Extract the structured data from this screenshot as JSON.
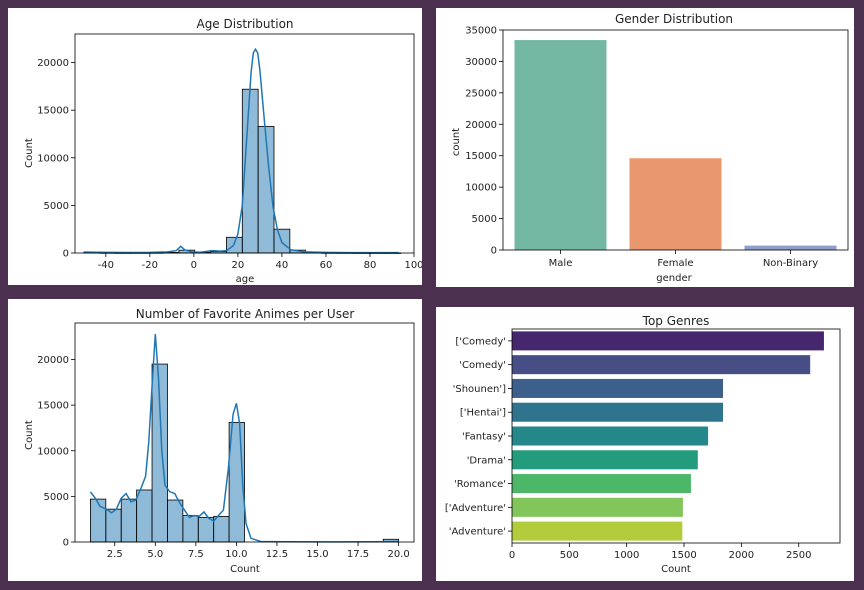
{
  "chart_data": [
    {
      "id": "age",
      "type": "histogram",
      "title": "Age Distribution",
      "xlabel": "age",
      "ylabel": "Count",
      "xlim": [
        -54,
        100
      ],
      "ylim": [
        0,
        23000
      ],
      "xticks": [
        "-40",
        "-20",
        "0",
        "20",
        "40",
        "60",
        "80",
        "100"
      ],
      "xtick_values": [
        -40,
        -20,
        0,
        20,
        40,
        60,
        80,
        100
      ],
      "yticks": [
        "0",
        "5000",
        "10000",
        "15000",
        "20000"
      ],
      "ytick_values": [
        0,
        5000,
        10000,
        15000,
        20000
      ],
      "bins": [
        {
          "x0": -50,
          "x1": -42.8,
          "count": 60
        },
        {
          "x0": -42.8,
          "x1": -35.6,
          "count": 25
        },
        {
          "x0": -35.6,
          "x1": -28.4,
          "count": 15
        },
        {
          "x0": -28.4,
          "x1": -21.2,
          "count": 20
        },
        {
          "x0": -21.2,
          "x1": -14,
          "count": 25
        },
        {
          "x0": -14,
          "x1": -6.8,
          "count": 60
        },
        {
          "x0": -6.8,
          "x1": 0.4,
          "count": 300
        },
        {
          "x0": 0.4,
          "x1": 7.6,
          "count": 80
        },
        {
          "x0": 7.6,
          "x1": 14.8,
          "count": 150
        },
        {
          "x0": 14.8,
          "x1": 22,
          "count": 1650
        },
        {
          "x0": 22,
          "x1": 29.2,
          "count": 17200
        },
        {
          "x0": 29.2,
          "x1": 36.4,
          "count": 13300
        },
        {
          "x0": 36.4,
          "x1": 43.6,
          "count": 2500
        },
        {
          "x0": 43.6,
          "x1": 50.8,
          "count": 300
        },
        {
          "x0": 50.8,
          "x1": 58,
          "count": 50
        },
        {
          "x0": 58,
          "x1": 65.2,
          "count": 20
        },
        {
          "x0": 65.2,
          "x1": 72.4,
          "count": 15
        },
        {
          "x0": 72.4,
          "x1": 79.6,
          "count": 10
        },
        {
          "x0": 79.6,
          "x1": 86.8,
          "count": 10
        },
        {
          "x0": 86.8,
          "x1": 94,
          "count": 10
        }
      ],
      "kde": [
        [
          -50,
          100
        ],
        [
          -44,
          80
        ],
        [
          -38,
          60
        ],
        [
          -30,
          50
        ],
        [
          -20,
          60
        ],
        [
          -12,
          120
        ],
        [
          -8,
          250
        ],
        [
          -6,
          700
        ],
        [
          -4,
          300
        ],
        [
          -1,
          120
        ],
        [
          3,
          80
        ],
        [
          8,
          250
        ],
        [
          12,
          200
        ],
        [
          15,
          250
        ],
        [
          18,
          800
        ],
        [
          20,
          2000
        ],
        [
          22,
          5000
        ],
        [
          24,
          12000
        ],
        [
          26,
          19000
        ],
        [
          27,
          21000
        ],
        [
          28,
          21400
        ],
        [
          29,
          21000
        ],
        [
          30,
          19200
        ],
        [
          32,
          14000
        ],
        [
          34,
          9000
        ],
        [
          36,
          4800
        ],
        [
          38,
          2400
        ],
        [
          40,
          1100
        ],
        [
          44,
          350
        ],
        [
          50,
          120
        ],
        [
          60,
          60
        ],
        [
          70,
          40
        ],
        [
          80,
          40
        ],
        [
          93,
          40
        ]
      ]
    },
    {
      "id": "gender",
      "type": "bar",
      "title": "Gender Distribution",
      "xlabel": "gender",
      "ylabel": "count",
      "categories": [
        "Male",
        "Female",
        "Non-Binary"
      ],
      "values": [
        33400,
        14600,
        700
      ],
      "colors": [
        "#74b8a3",
        "#e9976f",
        "#8c9fcb"
      ],
      "ylim": [
        0,
        35000
      ],
      "yticks": [
        "0",
        "5000",
        "10000",
        "15000",
        "20000",
        "25000",
        "30000",
        "35000"
      ],
      "ytick_values": [
        0,
        5000,
        10000,
        15000,
        20000,
        25000,
        30000,
        35000
      ]
    },
    {
      "id": "fav",
      "type": "histogram",
      "title": "Number of Favorite Animes per User",
      "xlabel": "Count",
      "ylabel": "Count",
      "xlim": [
        0.05,
        20.95
      ],
      "ylim": [
        0,
        24000
      ],
      "xticks": [
        "2.5",
        "5.0",
        "7.5",
        "10.0",
        "12.5",
        "15.0",
        "17.5",
        "20.0"
      ],
      "xtick_values": [
        2.5,
        5.0,
        7.5,
        10.0,
        12.5,
        15.0,
        17.5,
        20.0
      ],
      "yticks": [
        "0",
        "5000",
        "10000",
        "15000",
        "20000"
      ],
      "ytick_values": [
        0,
        5000,
        10000,
        15000,
        20000
      ],
      "bins": [
        {
          "x0": 1,
          "x1": 1.95,
          "count": 4700
        },
        {
          "x0": 1.95,
          "x1": 2.9,
          "count": 3600
        },
        {
          "x0": 2.9,
          "x1": 3.85,
          "count": 4700
        },
        {
          "x0": 3.85,
          "x1": 4.8,
          "count": 5700
        },
        {
          "x0": 4.8,
          "x1": 5.75,
          "count": 19500
        },
        {
          "x0": 5.75,
          "x1": 6.7,
          "count": 4600
        },
        {
          "x0": 6.7,
          "x1": 7.65,
          "count": 2900
        },
        {
          "x0": 7.65,
          "x1": 8.6,
          "count": 2700
        },
        {
          "x0": 8.6,
          "x1": 9.55,
          "count": 2800
        },
        {
          "x0": 9.55,
          "x1": 10.5,
          "count": 13100
        },
        {
          "x0": 10.5,
          "x1": 11.45,
          "count": 0
        },
        {
          "x0": 11.45,
          "x1": 12.4,
          "count": 0
        },
        {
          "x0": 12.4,
          "x1": 13.35,
          "count": 0
        },
        {
          "x0": 13.35,
          "x1": 14.3,
          "count": 0
        },
        {
          "x0": 14.3,
          "x1": 15.25,
          "count": 0
        },
        {
          "x0": 15.25,
          "x1": 16.2,
          "count": 0
        },
        {
          "x0": 16.2,
          "x1": 17.15,
          "count": 0
        },
        {
          "x0": 17.15,
          "x1": 18.1,
          "count": 0
        },
        {
          "x0": 18.1,
          "x1": 19.05,
          "count": 0
        },
        {
          "x0": 19.05,
          "x1": 20,
          "count": 300
        }
      ],
      "kde": [
        [
          1,
          5500
        ],
        [
          1.3,
          4800
        ],
        [
          1.6,
          3900
        ],
        [
          2,
          3600
        ],
        [
          2.3,
          3200
        ],
        [
          2.6,
          3600
        ],
        [
          2.9,
          4800
        ],
        [
          3.2,
          5300
        ],
        [
          3.5,
          4400
        ],
        [
          3.8,
          4600
        ],
        [
          4.1,
          5800
        ],
        [
          4.4,
          7200
        ],
        [
          4.6,
          11000
        ],
        [
          4.8,
          17000
        ],
        [
          5.0,
          22800
        ],
        [
          5.2,
          18000
        ],
        [
          5.4,
          10000
        ],
        [
          5.6,
          6200
        ],
        [
          5.9,
          5500
        ],
        [
          6.2,
          5300
        ],
        [
          6.5,
          4300
        ],
        [
          6.8,
          3500
        ],
        [
          7.1,
          2700
        ],
        [
          7.4,
          2900
        ],
        [
          7.7,
          2800
        ],
        [
          8.0,
          3300
        ],
        [
          8.3,
          2600
        ],
        [
          8.6,
          2300
        ],
        [
          8.9,
          2900
        ],
        [
          9.2,
          3500
        ],
        [
          9.5,
          8000
        ],
        [
          9.8,
          14000
        ],
        [
          10.0,
          15200
        ],
        [
          10.2,
          13000
        ],
        [
          10.4,
          6000
        ],
        [
          10.6,
          2000
        ],
        [
          10.9,
          400
        ],
        [
          11.5,
          60
        ],
        [
          13,
          20
        ],
        [
          16,
          10
        ],
        [
          19,
          30
        ],
        [
          20,
          50
        ]
      ]
    },
    {
      "id": "genres",
      "type": "bar",
      "orientation": "horizontal",
      "title": "Top Genres",
      "xlabel": "Count",
      "ylabel": "",
      "categories": [
        "['Comedy'",
        "'Comedy'",
        "'Shounen']",
        "['Hentai']",
        "'Fantasy'",
        "'Drama'",
        "'Romance'",
        "['Adventure'",
        "'Adventure'"
      ],
      "values": [
        2720,
        2600,
        1840,
        1840,
        1710,
        1620,
        1560,
        1490,
        1485
      ],
      "colors": [
        "#46266c",
        "#464e85",
        "#3c5f8b",
        "#2f738c",
        "#24888a",
        "#229c7c",
        "#4cb768",
        "#82c55a",
        "#b2cc3c"
      ],
      "xlim": [
        0,
        2860
      ],
      "xticks": [
        "0",
        "500",
        "1000",
        "1500",
        "2000",
        "2500"
      ],
      "xtick_values": [
        0,
        500,
        1000,
        1500,
        2000,
        2500
      ]
    }
  ]
}
